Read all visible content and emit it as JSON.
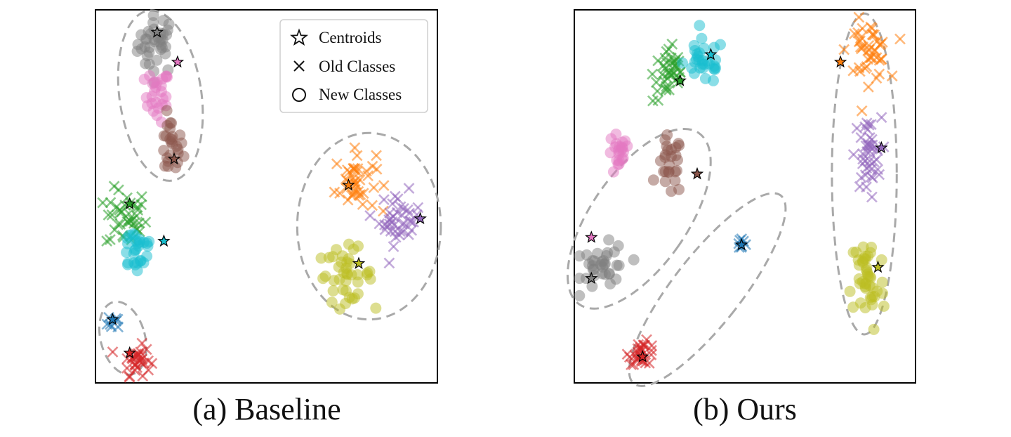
{
  "figure": {
    "legend": {
      "centroids": "Centroids",
      "old_classes": "Old Classes",
      "new_classes": "New Classes"
    }
  },
  "chart_data": [
    {
      "type": "scatter",
      "caption": "(a) Baseline",
      "xlim": [
        0,
        1
      ],
      "ylim": [
        0,
        1
      ],
      "axis_ticks": false,
      "grid": false,
      "legend_position": "top-right",
      "class_colors": {
        "gray": "#7f7f7f",
        "pink": "#e377c2",
        "brown": "#8c564b",
        "green": "#2ca02c",
        "cyan": "#17becf",
        "blue": "#1f77b4",
        "red": "#d62728",
        "orange": "#ff7f0e",
        "purple": "#9467bd",
        "olive": "#bcbd22"
      },
      "clusters": [
        {
          "cls": "gray",
          "marker": "o",
          "cx": 0.18,
          "cy": 0.91,
          "sx": 0.028,
          "sy": 0.04,
          "n": 38
        },
        {
          "cls": "pink",
          "marker": "o",
          "cx": 0.18,
          "cy": 0.77,
          "sx": 0.018,
          "sy": 0.035,
          "n": 26
        },
        {
          "cls": "brown",
          "marker": "o",
          "cx": 0.22,
          "cy": 0.63,
          "sx": 0.018,
          "sy": 0.04,
          "n": 26
        },
        {
          "cls": "green",
          "marker": "x",
          "cx": 0.09,
          "cy": 0.44,
          "sx": 0.03,
          "sy": 0.04,
          "n": 40
        },
        {
          "cls": "cyan",
          "marker": "o",
          "cx": 0.12,
          "cy": 0.36,
          "sx": 0.028,
          "sy": 0.035,
          "n": 28
        },
        {
          "cls": "blue",
          "marker": "x",
          "cx": 0.06,
          "cy": 0.17,
          "sx": 0.012,
          "sy": 0.015,
          "n": 8
        },
        {
          "cls": "red",
          "marker": "x",
          "cx": 0.12,
          "cy": 0.06,
          "sx": 0.02,
          "sy": 0.02,
          "n": 30
        },
        {
          "cls": "orange",
          "marker": "x",
          "cx": 0.76,
          "cy": 0.54,
          "sx": 0.03,
          "sy": 0.04,
          "n": 42
        },
        {
          "cls": "purple",
          "marker": "x",
          "cx": 0.89,
          "cy": 0.44,
          "sx": 0.03,
          "sy": 0.035,
          "n": 40
        },
        {
          "cls": "olive",
          "marker": "o",
          "cx": 0.73,
          "cy": 0.29,
          "sx": 0.04,
          "sy": 0.035,
          "n": 40
        }
      ],
      "centroids": [
        {
          "cls": "gray",
          "x": 0.18,
          "y": 0.94
        },
        {
          "cls": "pink",
          "x": 0.24,
          "y": 0.86
        },
        {
          "cls": "brown",
          "x": 0.23,
          "y": 0.6
        },
        {
          "cls": "green",
          "x": 0.1,
          "y": 0.48
        },
        {
          "cls": "cyan",
          "x": 0.2,
          "y": 0.38
        },
        {
          "cls": "blue",
          "x": 0.05,
          "y": 0.17
        },
        {
          "cls": "red",
          "x": 0.1,
          "y": 0.08
        },
        {
          "cls": "orange",
          "x": 0.74,
          "y": 0.53
        },
        {
          "cls": "purple",
          "x": 0.95,
          "y": 0.44
        },
        {
          "cls": "olive",
          "x": 0.77,
          "y": 0.32
        }
      ],
      "groups": [
        {
          "cx": 0.19,
          "cy": 0.77,
          "rx": 0.12,
          "ry": 0.23,
          "rot": -8
        },
        {
          "cx": 0.08,
          "cy": 0.12,
          "rx": 0.065,
          "ry": 0.1,
          "rot": -15
        },
        {
          "cx": 0.8,
          "cy": 0.42,
          "rx": 0.21,
          "ry": 0.25,
          "rot": 0
        }
      ]
    },
    {
      "type": "scatter",
      "caption": "(b) Ours",
      "xlim": [
        0,
        1
      ],
      "ylim": [
        0,
        1
      ],
      "axis_ticks": false,
      "grid": false,
      "legend_position": "none",
      "class_colors": {
        "gray": "#7f7f7f",
        "pink": "#e377c2",
        "brown": "#8c564b",
        "green": "#2ca02c",
        "cyan": "#17becf",
        "blue": "#1f77b4",
        "red": "#d62728",
        "orange": "#ff7f0e",
        "purple": "#9467bd",
        "olive": "#bcbd22"
      },
      "clusters": [
        {
          "cls": "green",
          "marker": "x",
          "cx": 0.28,
          "cy": 0.83,
          "sx": 0.025,
          "sy": 0.04,
          "n": 40
        },
        {
          "cls": "cyan",
          "marker": "o",
          "cx": 0.38,
          "cy": 0.86,
          "sx": 0.03,
          "sy": 0.03,
          "n": 30
        },
        {
          "cls": "pink",
          "marker": "o",
          "cx": 0.13,
          "cy": 0.61,
          "sx": 0.016,
          "sy": 0.03,
          "n": 22
        },
        {
          "cls": "brown",
          "marker": "o",
          "cx": 0.28,
          "cy": 0.58,
          "sx": 0.018,
          "sy": 0.04,
          "n": 26
        },
        {
          "cls": "gray",
          "marker": "o",
          "cx": 0.09,
          "cy": 0.31,
          "sx": 0.035,
          "sy": 0.03,
          "n": 34
        },
        {
          "cls": "blue",
          "marker": "x",
          "cx": 0.49,
          "cy": 0.38,
          "sx": 0.008,
          "sy": 0.012,
          "n": 8
        },
        {
          "cls": "red",
          "marker": "x",
          "cx": 0.2,
          "cy": 0.08,
          "sx": 0.02,
          "sy": 0.015,
          "n": 28
        },
        {
          "cls": "orange",
          "marker": "x",
          "cx": 0.86,
          "cy": 0.89,
          "sx": 0.03,
          "sy": 0.04,
          "n": 44
        },
        {
          "cls": "purple",
          "marker": "x",
          "cx": 0.86,
          "cy": 0.61,
          "sx": 0.02,
          "sy": 0.05,
          "n": 42
        },
        {
          "cls": "olive",
          "marker": "o",
          "cx": 0.86,
          "cy": 0.27,
          "sx": 0.025,
          "sy": 0.07,
          "n": 44
        }
      ],
      "centroids": [
        {
          "cls": "cyan",
          "x": 0.4,
          "y": 0.88
        },
        {
          "cls": "green",
          "x": 0.31,
          "y": 0.81
        },
        {
          "cls": "brown",
          "x": 0.36,
          "y": 0.56
        },
        {
          "cls": "pink",
          "x": 0.05,
          "y": 0.39
        },
        {
          "cls": "gray",
          "x": 0.05,
          "y": 0.28
        },
        {
          "cls": "blue",
          "x": 0.49,
          "y": 0.37
        },
        {
          "cls": "red",
          "x": 0.2,
          "y": 0.07
        },
        {
          "cls": "orange",
          "x": 0.78,
          "y": 0.86
        },
        {
          "cls": "purple",
          "x": 0.9,
          "y": 0.63
        },
        {
          "cls": "olive",
          "x": 0.89,
          "y": 0.31
        }
      ],
      "groups": [
        {
          "cx": 0.19,
          "cy": 0.44,
          "rx": 0.14,
          "ry": 0.28,
          "rot": 35
        },
        {
          "cx": 0.39,
          "cy": 0.25,
          "rx": 0.1,
          "ry": 0.32,
          "rot": 38
        },
        {
          "cx": 0.85,
          "cy": 0.56,
          "rx": 0.095,
          "ry": 0.43,
          "rot": 0
        }
      ]
    }
  ]
}
